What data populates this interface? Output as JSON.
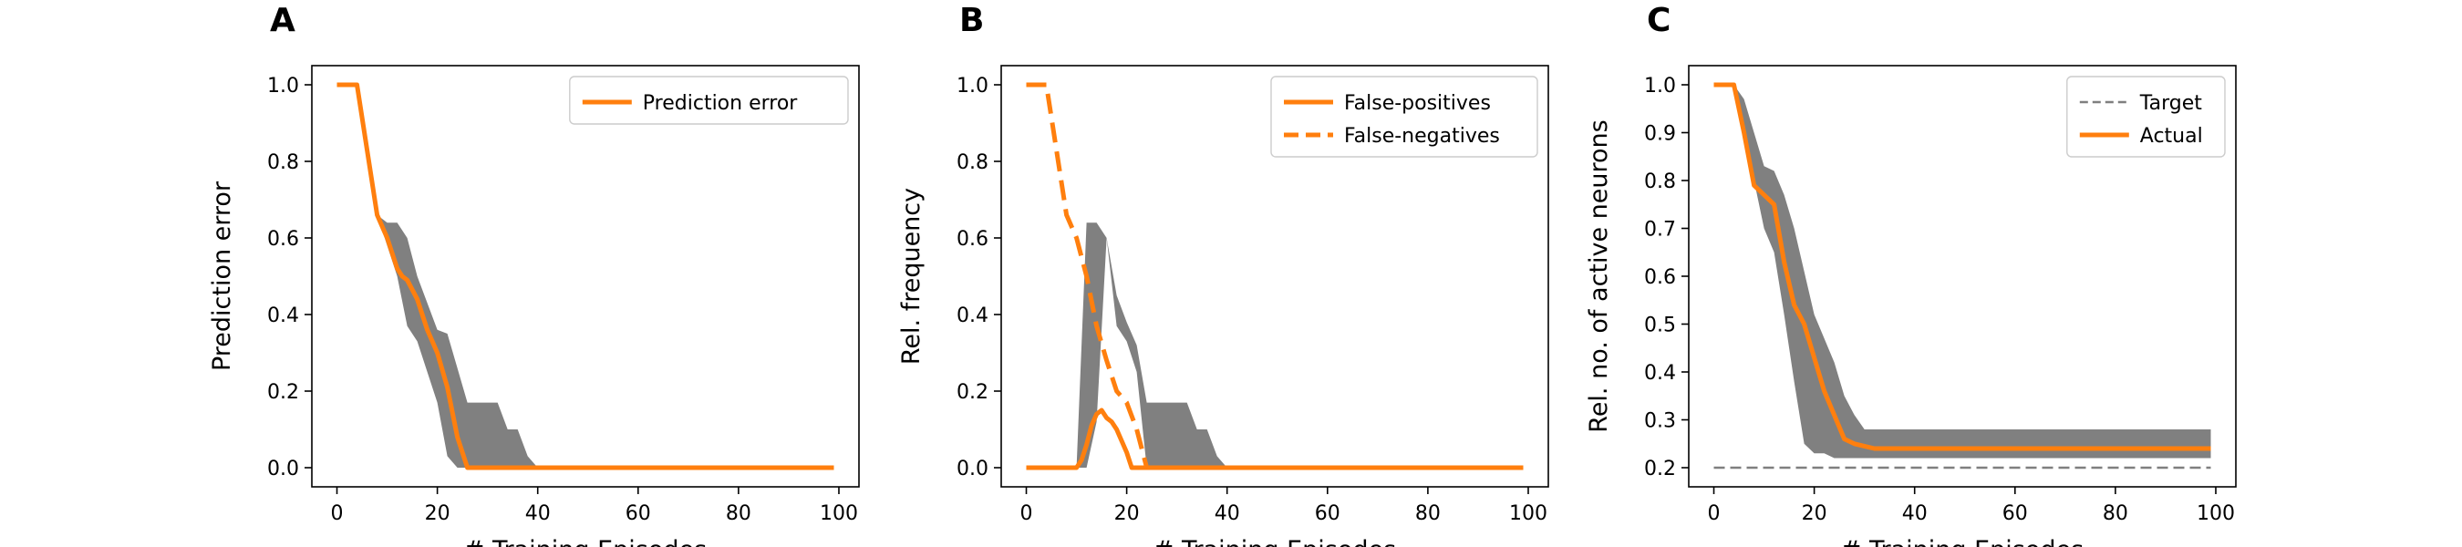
{
  "chart_data": [
    {
      "type": "line",
      "panel_label": "A",
      "title": "",
      "xlabel": "# Training Episodes",
      "ylabel": "Prediction error",
      "xlim": [
        -5,
        104
      ],
      "ylim": [
        -0.05,
        1.05
      ],
      "xticks": [
        0,
        20,
        40,
        60,
        80,
        100
      ],
      "yticks": [
        0.0,
        0.2,
        0.4,
        0.6,
        0.8,
        1.0
      ],
      "ytick_decimals": 1,
      "legend": "top-right",
      "grid": false,
      "bands": [
        {
          "color": "#808080",
          "x": [
            0,
            4,
            8,
            10,
            12,
            14,
            16,
            18,
            20,
            22,
            24,
            26,
            28,
            30,
            32,
            34,
            36,
            38,
            40,
            50,
            99
          ],
          "lower": [
            1.0,
            1.0,
            0.66,
            0.58,
            0.5,
            0.37,
            0.33,
            0.25,
            0.17,
            0.03,
            0.0,
            0.0,
            0.0,
            0.0,
            0.0,
            0.0,
            0.0,
            0.0,
            0.0,
            0.0,
            0.0
          ],
          "upper": [
            1.0,
            1.0,
            0.66,
            0.64,
            0.64,
            0.6,
            0.5,
            0.43,
            0.36,
            0.35,
            0.26,
            0.17,
            0.17,
            0.17,
            0.17,
            0.1,
            0.1,
            0.03,
            0.0,
            0.0,
            0.0
          ]
        }
      ],
      "series": [
        {
          "name": "Prediction error",
          "color": "#ff7f0e",
          "dash": "solid",
          "x": [
            0,
            4,
            8,
            10,
            12,
            13,
            14,
            16,
            18,
            20,
            22,
            24,
            25,
            26,
            30,
            40,
            60,
            80,
            99
          ],
          "y": [
            1.0,
            1.0,
            0.66,
            0.6,
            0.52,
            0.5,
            0.49,
            0.44,
            0.36,
            0.3,
            0.21,
            0.08,
            0.04,
            0.0,
            0.0,
            0.0,
            0.0,
            0.0,
            0.0
          ]
        }
      ]
    },
    {
      "type": "line",
      "panel_label": "B",
      "title": "",
      "xlabel": "# Training Episodes",
      "ylabel": "Rel. frequency",
      "xlim": [
        -5,
        104
      ],
      "ylim": [
        -0.05,
        1.05
      ],
      "xticks": [
        0,
        20,
        40,
        60,
        80,
        100
      ],
      "yticks": [
        0.0,
        0.2,
        0.4,
        0.6,
        0.8,
        1.0
      ],
      "ytick_decimals": 1,
      "legend": "top-right",
      "grid": false,
      "bands": [
        {
          "color": "#808080",
          "x": [
            0,
            10,
            12,
            14,
            16,
            18,
            20,
            22,
            24,
            26,
            28,
            30,
            32,
            34,
            36,
            38,
            40,
            50,
            99
          ],
          "lower": [
            0.0,
            0.0,
            0.0,
            0.12,
            0.6,
            0.37,
            0.33,
            0.25,
            0.0,
            0.0,
            0.0,
            0.0,
            0.0,
            0.0,
            0.0,
            0.0,
            0.0,
            0.0,
            0.0
          ],
          "upper": [
            0.0,
            0.0,
            0.64,
            0.64,
            0.6,
            0.45,
            0.38,
            0.32,
            0.17,
            0.17,
            0.17,
            0.17,
            0.17,
            0.1,
            0.1,
            0.03,
            0.0,
            0.0,
            0.0
          ]
        }
      ],
      "series": [
        {
          "name": "False-positives",
          "color": "#ff7f0e",
          "dash": "solid",
          "x": [
            0,
            10,
            11,
            12,
            13,
            14,
            15,
            16,
            17,
            18,
            19,
            20,
            21,
            22,
            24,
            40,
            60,
            80,
            99
          ],
          "y": [
            0.0,
            0.0,
            0.02,
            0.06,
            0.11,
            0.14,
            0.15,
            0.13,
            0.12,
            0.1,
            0.07,
            0.04,
            0.0,
            0.0,
            0.0,
            0.0,
            0.0,
            0.0,
            0.0
          ]
        },
        {
          "name": "False-negatives",
          "color": "#ff7f0e",
          "dash": "dashed",
          "x": [
            0,
            4,
            8,
            10,
            12,
            14,
            16,
            18,
            20,
            22,
            24
          ],
          "y": [
            1.0,
            1.0,
            0.66,
            0.6,
            0.5,
            0.37,
            0.28,
            0.2,
            0.17,
            0.1,
            0.0
          ]
        }
      ]
    },
    {
      "type": "line",
      "panel_label": "C",
      "title": "",
      "xlabel": "# Training Episodes",
      "ylabel": "Rel. no. of active neurons",
      "xlim": [
        -5,
        104
      ],
      "ylim": [
        0.16,
        1.04
      ],
      "xticks": [
        0,
        20,
        40,
        60,
        80,
        100
      ],
      "yticks": [
        0.2,
        0.3,
        0.4,
        0.5,
        0.6,
        0.7,
        0.8,
        0.9,
        1.0
      ],
      "ytick_decimals": 1,
      "legend": "top-right",
      "grid": false,
      "bands": [
        {
          "color": "#808080",
          "x": [
            0,
            4,
            6,
            8,
            10,
            12,
            14,
            16,
            18,
            20,
            22,
            24,
            26,
            28,
            30,
            32,
            40,
            60,
            99
          ],
          "lower": [
            1.0,
            1.0,
            0.9,
            0.8,
            0.7,
            0.65,
            0.52,
            0.38,
            0.25,
            0.23,
            0.23,
            0.22,
            0.22,
            0.22,
            0.22,
            0.22,
            0.22,
            0.22,
            0.22
          ],
          "upper": [
            1.0,
            1.0,
            0.97,
            0.9,
            0.83,
            0.82,
            0.77,
            0.7,
            0.61,
            0.52,
            0.47,
            0.42,
            0.35,
            0.31,
            0.28,
            0.28,
            0.28,
            0.28,
            0.28
          ]
        }
      ],
      "series": [
        {
          "name": "Target",
          "color": "#7f7f7f",
          "dash": "dashed",
          "x": [
            0,
            99
          ],
          "y": [
            0.2,
            0.2
          ]
        },
        {
          "name": "Actual",
          "color": "#ff7f0e",
          "dash": "solid",
          "x": [
            0,
            4,
            6,
            8,
            10,
            12,
            14,
            16,
            18,
            20,
            22,
            24,
            26,
            28,
            30,
            32,
            36,
            40,
            60,
            80,
            99
          ],
          "y": [
            1.0,
            1.0,
            0.9,
            0.79,
            0.77,
            0.75,
            0.63,
            0.54,
            0.5,
            0.43,
            0.36,
            0.31,
            0.26,
            0.25,
            0.245,
            0.24,
            0.24,
            0.24,
            0.24,
            0.24,
            0.24
          ]
        }
      ]
    }
  ]
}
